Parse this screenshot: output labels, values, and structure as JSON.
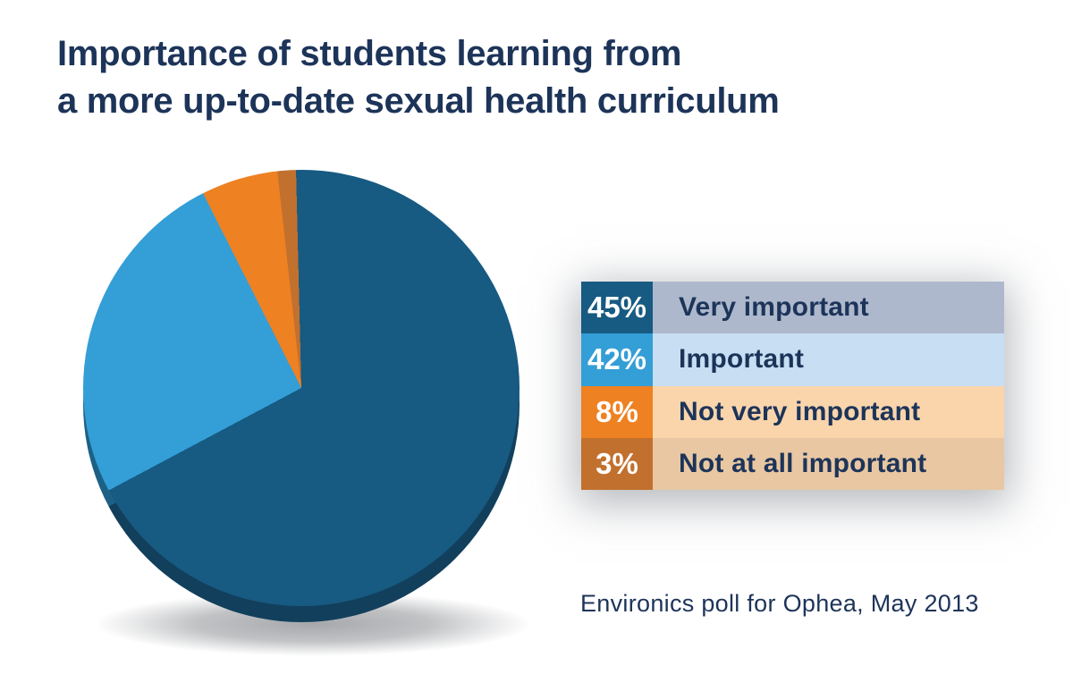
{
  "title": {
    "line1": "Importance of students learning from",
    "line2": "a more up-to-date sexual health curriculum"
  },
  "source_note": "Environics poll for Ophea, May 2013",
  "colors": {
    "title_text": "#1d3459",
    "legend_text": "#1d3459",
    "legend_number_text": "#ffffff",
    "background": "#ffffff"
  },
  "chart_data": {
    "type": "pie",
    "title": "Importance of students learning from a more up-to-date sexual health curriculum",
    "legend_position": "right",
    "segments": [
      {
        "label": "Very important",
        "value": 45,
        "pct_label": "45%",
        "color": "#175a82",
        "depth_color": "#123f5c",
        "row_bg": "#aeb8cd",
        "drawn_sweep_deg": 243.4
      },
      {
        "label": "Important",
        "value": 42,
        "pct_label": "42%",
        "color": "#349ed6",
        "depth_color": "#1d6086",
        "row_bg": "#c8def2",
        "drawn_sweep_deg": 91.2
      },
      {
        "label": "Not very important",
        "value": 8,
        "pct_label": "8%",
        "color": "#ee8122",
        "depth_color": "#a85a16",
        "row_bg": "#fad5ac",
        "drawn_sweep_deg": 20.5
      },
      {
        "label": "Not at all important",
        "value": 3,
        "pct_label": "3%",
        "color": "#c2702e",
        "depth_color": "#8a4e1e",
        "row_bg": "#e8c7a2",
        "drawn_sweep_deg": 4.9
      }
    ],
    "rotation_deg": -1.4
  }
}
